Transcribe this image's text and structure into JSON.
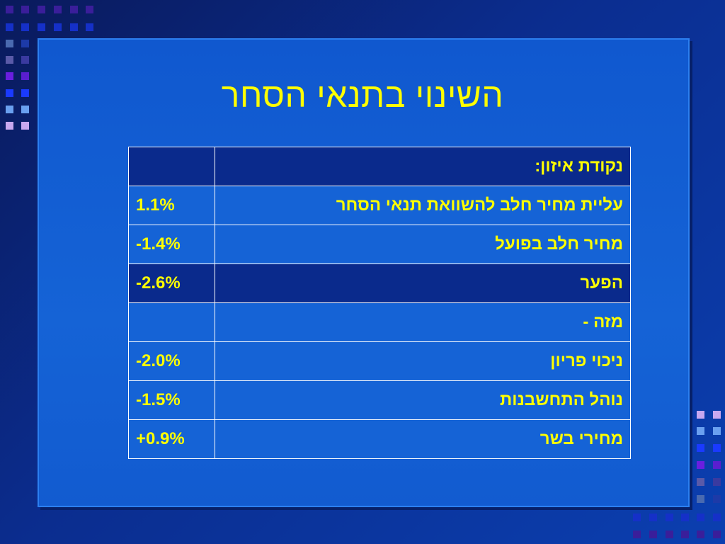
{
  "slide": {
    "title": "השינוי בתנאי הסחר"
  },
  "table": {
    "rows": [
      {
        "label": "נקודת איזון:",
        "value": "",
        "highlight": true
      },
      {
        "label": "עליית מחיר חלב להשוואת תנאי הסחר",
        "value": "1.1%",
        "highlight": false
      },
      {
        "label": "מחיר חלב בפועל",
        "value": "-1.4%",
        "highlight": false
      },
      {
        "label": "הפער",
        "value": "-2.6%",
        "highlight": true
      },
      {
        "label": "מזה -",
        "value": "",
        "highlight": false
      },
      {
        "label": "ניכוי פריון",
        "value": "-2.0%",
        "highlight": false
      },
      {
        "label": "נוהל התחשבנות",
        "value": "-1.5%",
        "highlight": false
      },
      {
        "label": "מחירי בשר",
        "value": "+0.9%",
        "highlight": false
      }
    ]
  },
  "colors": {
    "text_accent": "#ffff00",
    "slide_bg": "#1563d6",
    "highlight_row": "#0a2a8c",
    "page_bg": "#0b2d8f"
  }
}
